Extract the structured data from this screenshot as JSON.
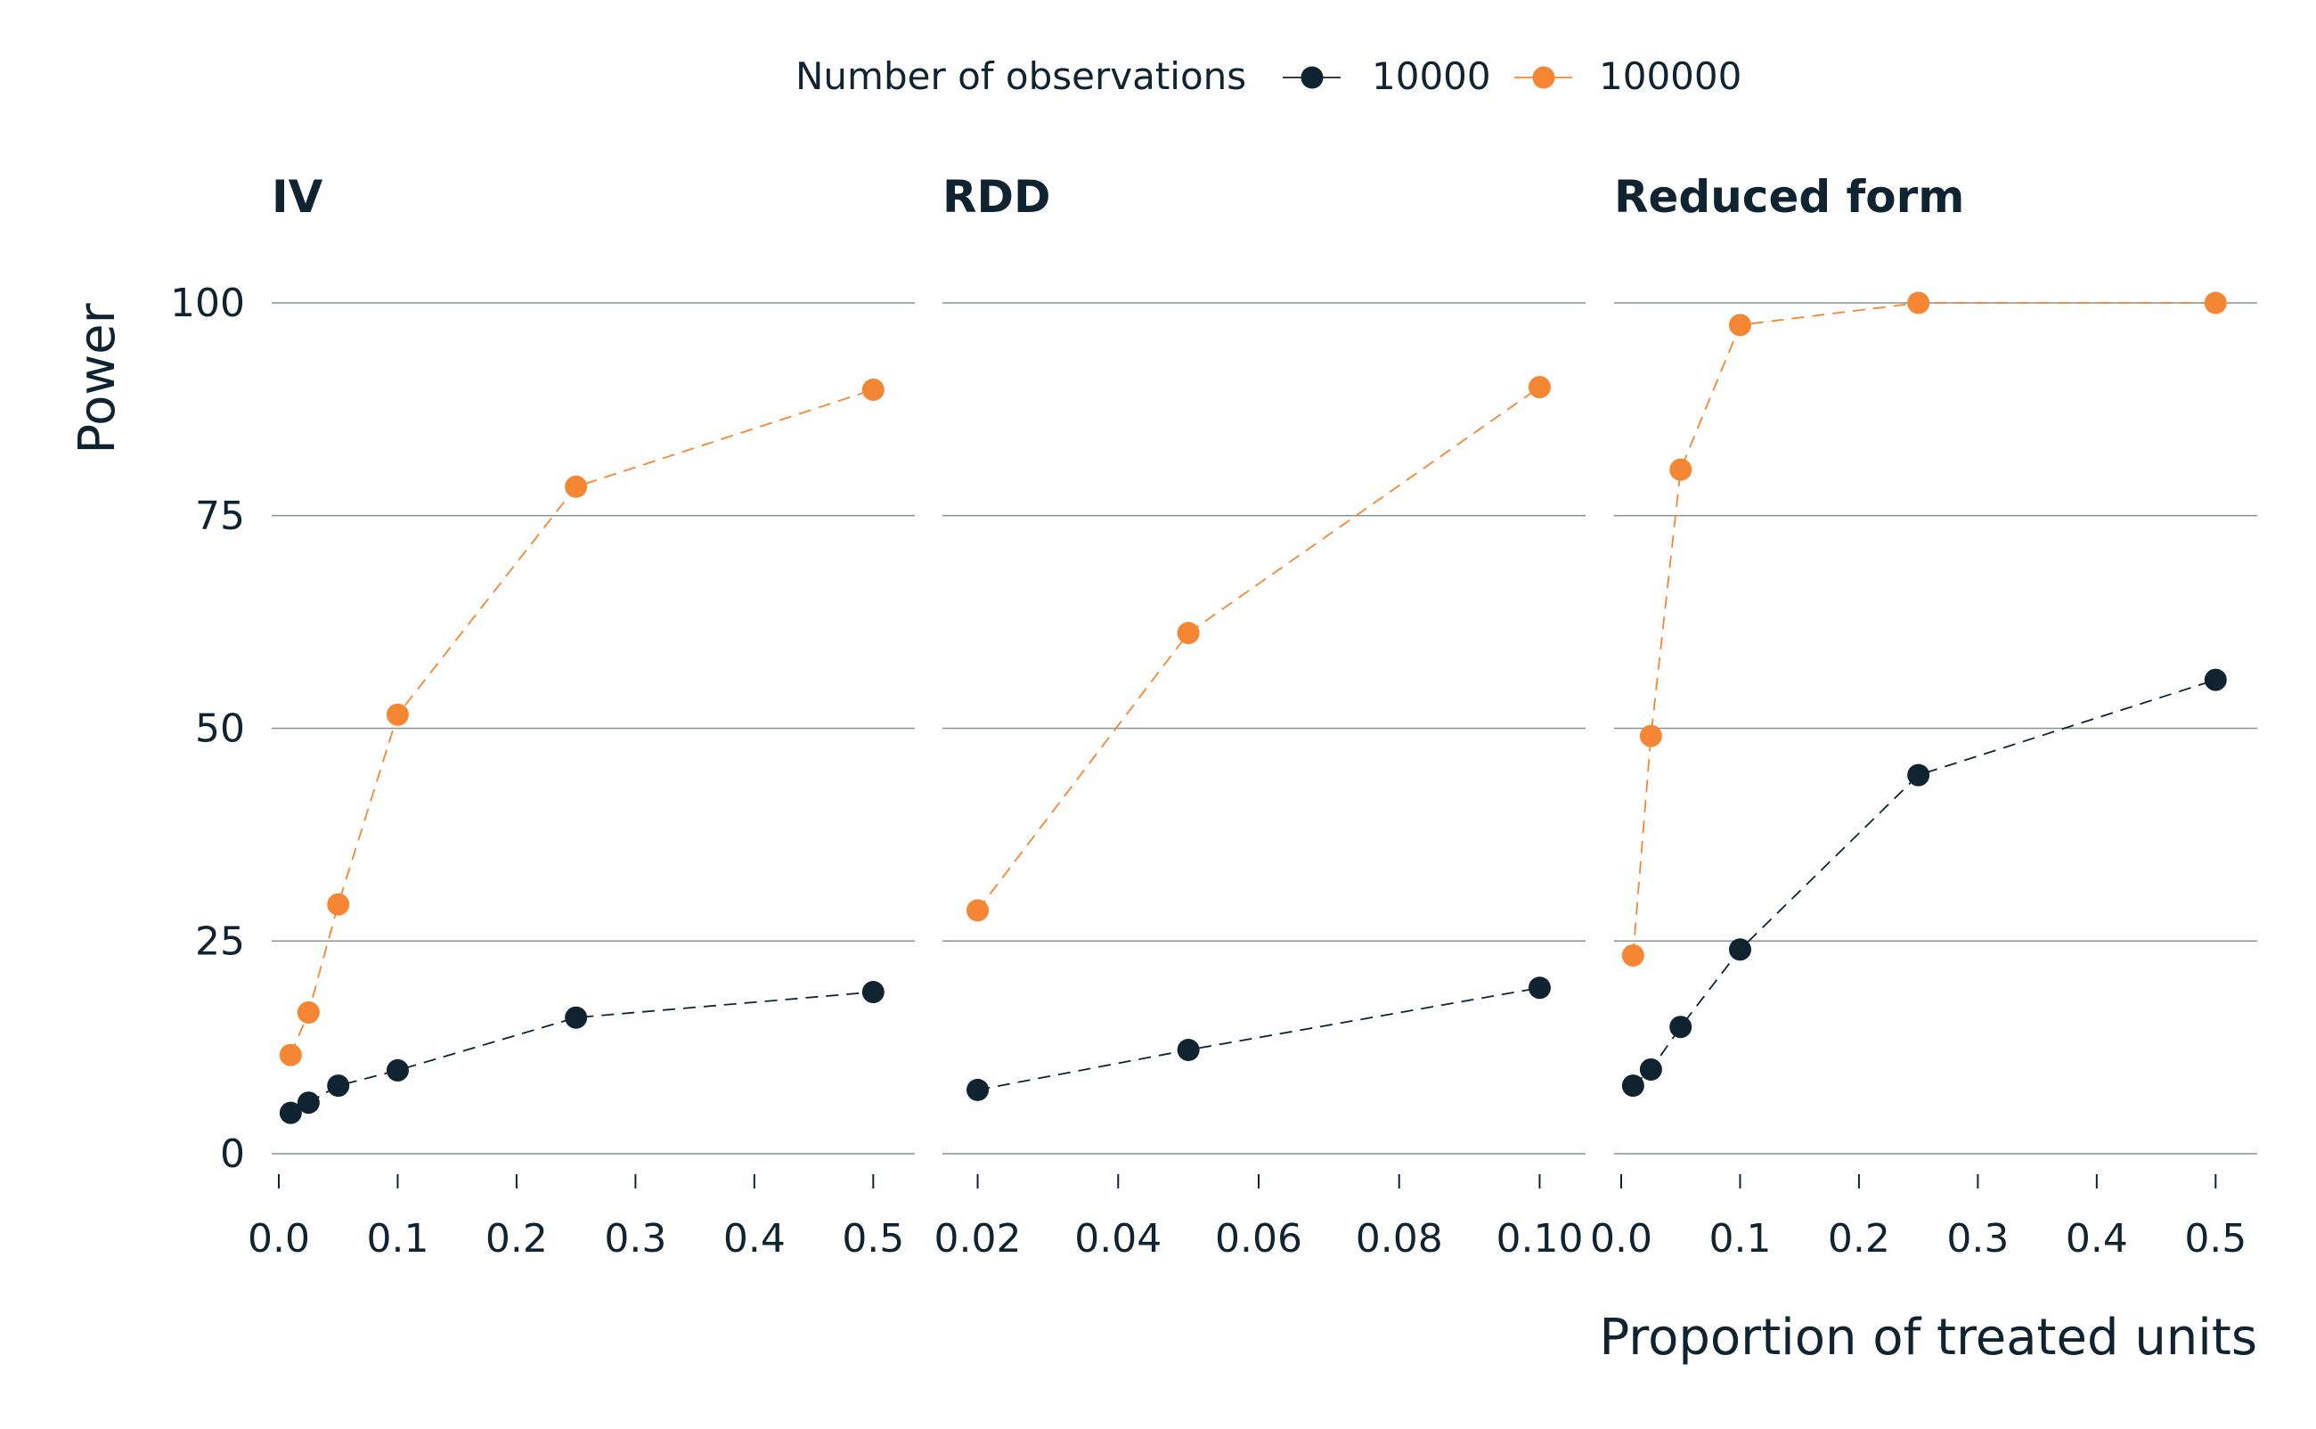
{
  "chart_data": {
    "type": "line",
    "legend": {
      "title": "Number of observations",
      "position": "top",
      "entries": [
        "10000",
        "100000"
      ]
    },
    "ylabel": "Power",
    "xlabel": "Proportion of treated units",
    "ylim": [
      0,
      100
    ],
    "yticks": [
      "0",
      "25",
      "50",
      "75",
      "100"
    ],
    "grid": "horizontal",
    "colors": {
      "10000": "#0f2430",
      "100000": "#f58634",
      "grid": "#8a9496"
    },
    "panels": [
      {
        "title": "IV",
        "xlim": [
          0,
          0.52
        ],
        "xticks": [
          "0.0",
          "0.1",
          "0.2",
          "0.3",
          "0.4",
          "0.5"
        ],
        "xtick_values": [
          0,
          0.1,
          0.2,
          0.3,
          0.4,
          0.5
        ],
        "series": [
          {
            "name": "10000",
            "x": [
              0.01,
              0.025,
              0.05,
              0.1,
              0.25,
              0.5
            ],
            "y": [
              4.8,
              6.0,
              8.0,
              9.8,
              16.0,
              19.0
            ]
          },
          {
            "name": "100000",
            "x": [
              0.01,
              0.025,
              0.05,
              0.1,
              0.25,
              0.5
            ],
            "y": [
              11.6,
              16.6,
              29.3,
              51.6,
              78.4,
              89.8
            ]
          }
        ]
      },
      {
        "title": "RDD",
        "xlim": [
          0.016,
          0.104
        ],
        "xticks": [
          "0.02",
          "0.04",
          "0.06",
          "0.08",
          "0.10"
        ],
        "xtick_values": [
          0.02,
          0.04,
          0.06,
          0.08,
          0.1
        ],
        "series": [
          {
            "name": "10000",
            "x": [
              0.02,
              0.05,
              0.1
            ],
            "y": [
              7.5,
              12.2,
              19.5
            ]
          },
          {
            "name": "100000",
            "x": [
              0.02,
              0.05,
              0.1
            ],
            "y": [
              28.6,
              61.2,
              90.1
            ]
          }
        ]
      },
      {
        "title": "Reduced form",
        "xlim": [
          0,
          0.52
        ],
        "xticks": [
          "0.0",
          "0.1",
          "0.2",
          "0.3",
          "0.4",
          "0.5"
        ],
        "xtick_values": [
          0,
          0.1,
          0.2,
          0.3,
          0.4,
          0.5
        ],
        "series": [
          {
            "name": "10000",
            "x": [
              0.01,
              0.025,
              0.05,
              0.1,
              0.25,
              0.5
            ],
            "y": [
              8.0,
              9.9,
              14.9,
              24.0,
              44.5,
              55.7
            ]
          },
          {
            "name": "100000",
            "x": [
              0.01,
              0.025,
              0.05,
              0.1,
              0.25,
              0.5
            ],
            "y": [
              23.3,
              49.1,
              80.4,
              97.4,
              100.0,
              100.0
            ]
          }
        ]
      }
    ]
  }
}
